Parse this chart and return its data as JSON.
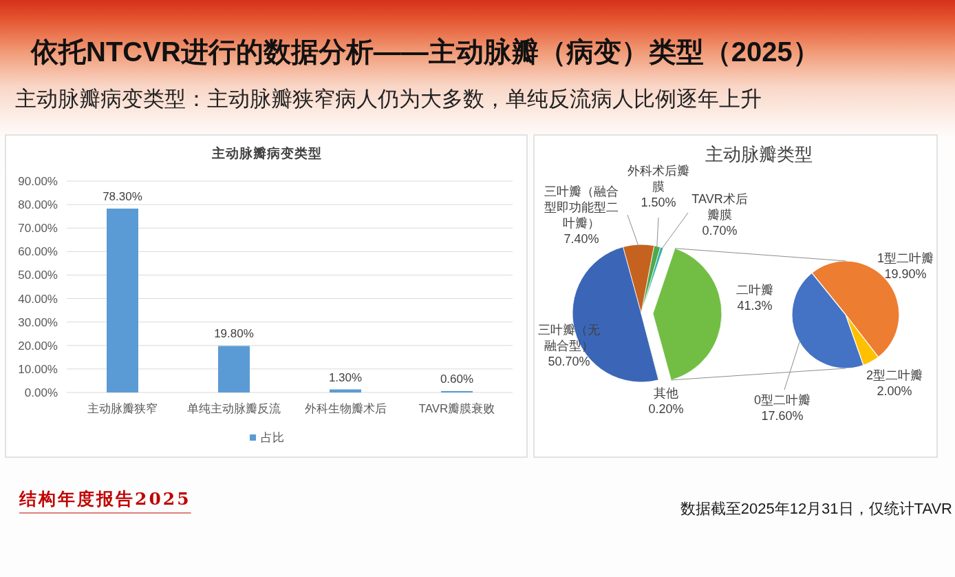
{
  "chart_data": [
    {
      "type": "other",
      "title": "依托NTCVR进行的数据分析——主动脉瓣（病变）类型（2025）",
      "subtitle": "主动脉瓣病变类型：主动脉瓣狭窄病人仍为大多数，单纯反流病人比例逐年上升",
      "annotations": [
        "结构年度报告2025",
        "数据截至2025年12月31日，仅统计TAVR"
      ]
    },
    {
      "type": "bar",
      "title": "主动脉瓣病变类型",
      "categories": [
        "主动脉瓣狭窄",
        "单纯主动脉瓣反流",
        "外科生物瓣术后",
        "TAVR瓣膜衰败"
      ],
      "series": [
        {
          "name": "占比",
          "color": "#5b9bd5",
          "values": [
            78.3,
            19.8,
            1.3,
            0.6
          ],
          "value_labels": [
            "78.30%",
            "19.80%",
            "1.30%",
            "0.60%"
          ]
        }
      ],
      "ylim": [
        0,
        90
      ],
      "yticks": [
        {
          "value": 0,
          "label": "0.00%"
        },
        {
          "value": 10,
          "label": "10.00%"
        },
        {
          "value": 20,
          "label": "20.00%"
        },
        {
          "value": 30,
          "label": "30.00%"
        },
        {
          "value": 40,
          "label": "40.00%"
        },
        {
          "value": 50,
          "label": "50.00%"
        },
        {
          "value": 60,
          "label": "60.00%"
        },
        {
          "value": 70,
          "label": "70.00%"
        },
        {
          "value": 80,
          "label": "80.00%"
        },
        {
          "value": 90,
          "label": "90.00%"
        }
      ],
      "grid": "y",
      "legend": "bottom"
    },
    {
      "type": "pie",
      "title": "主动脉瓣类型",
      "categories": [
        "三叶瓣（无融合型）",
        "三叶瓣（融合型即功能型二叶瓣）",
        "外科术后瓣膜",
        "TAVR术后瓣膜",
        "二叶瓣",
        "其他"
      ],
      "values": [
        50.7,
        7.4,
        1.5,
        0.7,
        41.3,
        0.2
      ],
      "colors": [
        "#3b66b8",
        "#c5621f",
        "#4fa84a",
        "#2fb3a5",
        "#72be44",
        "#e8d96a"
      ],
      "value_labels": [
        "50.70%",
        "7.40%",
        "1.50%",
        "0.70%",
        "41.3%",
        "0.20%"
      ]
    },
    {
      "type": "pie",
      "categories": [
        "1型二叶瓣",
        "2型二叶瓣",
        "0型二叶瓣"
      ],
      "values": [
        19.9,
        2.0,
        17.6
      ],
      "colors": [
        "#ed7d31",
        "#ffc000",
        "#4472c4"
      ],
      "value_labels": [
        "19.90%",
        "2.00%",
        "17.60%"
      ]
    }
  ]
}
